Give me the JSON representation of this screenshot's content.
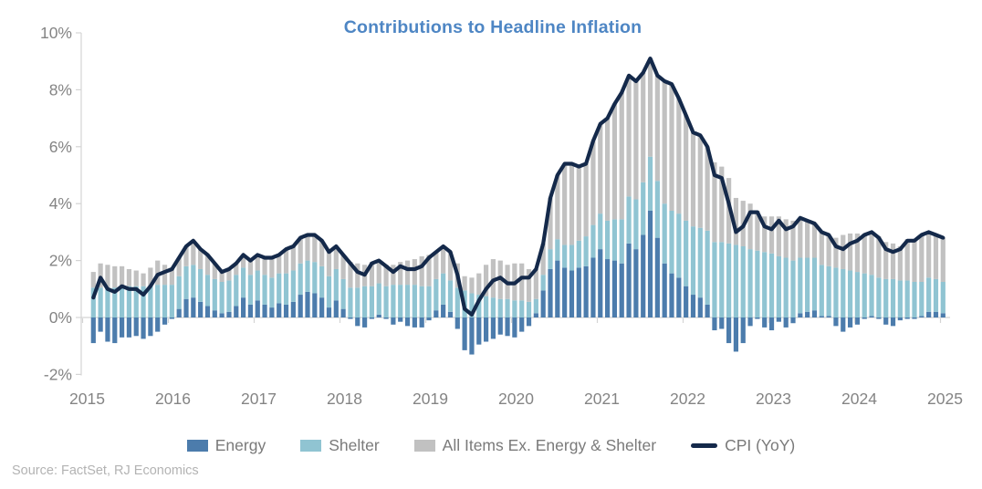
{
  "title": "Contributions to Headline Inflation",
  "source": "Source: FactSet, RJ Economics",
  "colors": {
    "energy": "#4C7CAC",
    "shelter": "#90C4D2",
    "core": "#C1C1C1",
    "cpi_line": "#14294A",
    "title_text": "#4E86C4",
    "axis_text": "#848484",
    "legend_text": "#7A7A7A",
    "source_text": "#B3B3B3",
    "axis_line": "#D4D4D4"
  },
  "legend": {
    "items": [
      {
        "key": "energy",
        "label": "Energy",
        "type": "swatch"
      },
      {
        "key": "shelter",
        "label": "Shelter",
        "type": "swatch"
      },
      {
        "key": "core",
        "label": "All Items Ex. Energy & Shelter",
        "type": "swatch"
      },
      {
        "key": "cpi",
        "label": "CPI (YoY)",
        "type": "line"
      }
    ]
  },
  "chart_data": {
    "type": "stacked_bar_with_line",
    "title": "Contributions to Headline Inflation",
    "unit": "%",
    "frequency": "monthly",
    "start_month": "2015-12",
    "n_points": 120,
    "ylim": [
      -2,
      10
    ],
    "grid": false,
    "legend_position": "bottom",
    "y_tick_values": [
      10,
      8,
      6,
      4,
      2,
      0,
      -2
    ],
    "y_tick_labels": [
      "10%",
      "8%",
      "6%",
      "4%",
      "2%",
      "0%",
      "-2%"
    ],
    "x_tick_labels": [
      "2015",
      "2016",
      "2017",
      "2018",
      "2019",
      "2020",
      "2021",
      "2022",
      "2023",
      "2024",
      "2025"
    ],
    "series": [
      {
        "name": "Energy",
        "key": "energy",
        "render": "bar",
        "color": "#4C7CAC",
        "values": [
          -0.9,
          -0.5,
          -0.85,
          -0.9,
          -0.7,
          -0.7,
          -0.65,
          -0.75,
          -0.65,
          -0.5,
          -0.25,
          -0.05,
          0.3,
          0.65,
          0.7,
          0.55,
          0.4,
          0.25,
          0.15,
          0.2,
          0.4,
          0.7,
          0.45,
          0.6,
          0.45,
          0.35,
          0.5,
          0.45,
          0.55,
          0.8,
          0.9,
          0.85,
          0.7,
          0.35,
          0.6,
          0.3,
          -0.05,
          -0.3,
          -0.35,
          -0.05,
          0.1,
          -0.05,
          -0.25,
          -0.15,
          -0.3,
          -0.35,
          -0.35,
          -0.1,
          0.25,
          0.45,
          0.2,
          -0.4,
          -1.15,
          -1.3,
          -0.95,
          -0.85,
          -0.75,
          -0.6,
          -0.65,
          -0.7,
          -0.5,
          -0.3,
          0.15,
          0.95,
          1.7,
          2.0,
          1.75,
          1.65,
          1.75,
          1.8,
          2.1,
          2.4,
          2.05,
          2.0,
          1.9,
          2.6,
          2.4,
          2.9,
          3.75,
          2.8,
          1.9,
          1.55,
          1.4,
          1.1,
          0.8,
          0.7,
          0.45,
          -0.45,
          -0.4,
          -0.9,
          -1.2,
          -0.9,
          -0.3,
          -0.05,
          -0.35,
          -0.45,
          -0.15,
          -0.35,
          -0.2,
          0.15,
          0.2,
          0.25,
          0.05,
          0.05,
          -0.3,
          -0.5,
          -0.35,
          -0.25,
          -0.05,
          0.05,
          -0.05,
          -0.25,
          -0.3,
          -0.1,
          -0.05,
          -0.05,
          0.05,
          0.2,
          0.2,
          0.15
        ]
      },
      {
        "name": "Shelter",
        "key": "shelter",
        "render": "bar",
        "color": "#90C4D2",
        "values": [
          1.05,
          1.05,
          1.05,
          1.05,
          1.05,
          1.1,
          1.1,
          1.1,
          1.1,
          1.15,
          1.15,
          1.15,
          1.15,
          1.15,
          1.15,
          1.15,
          1.1,
          1.1,
          1.1,
          1.1,
          1.1,
          1.05,
          1.05,
          1.05,
          1.05,
          1.05,
          1.05,
          1.1,
          1.1,
          1.1,
          1.1,
          1.1,
          1.1,
          1.1,
          1.1,
          1.05,
          1.05,
          1.05,
          1.1,
          1.1,
          1.1,
          1.1,
          1.15,
          1.15,
          1.15,
          1.15,
          1.1,
          1.1,
          1.1,
          1.1,
          1.1,
          1.05,
          0.95,
          0.85,
          0.8,
          0.75,
          0.7,
          0.65,
          0.65,
          0.6,
          0.6,
          0.55,
          0.5,
          0.55,
          0.7,
          0.75,
          0.8,
          0.9,
          0.95,
          1.05,
          1.15,
          1.25,
          1.35,
          1.45,
          1.55,
          1.65,
          1.75,
          1.85,
          1.9,
          2.0,
          2.1,
          2.2,
          2.25,
          2.3,
          2.4,
          2.45,
          2.6,
          2.65,
          2.65,
          2.6,
          2.55,
          2.5,
          2.4,
          2.35,
          2.3,
          2.25,
          2.15,
          2.1,
          2.0,
          1.95,
          1.9,
          1.85,
          1.8,
          1.75,
          1.75,
          1.7,
          1.65,
          1.6,
          1.55,
          1.45,
          1.4,
          1.35,
          1.35,
          1.3,
          1.3,
          1.25,
          1.2,
          1.2,
          1.15,
          1.1
        ]
      },
      {
        "name": "All Items Ex. Energy & Shelter",
        "key": "core",
        "render": "bar",
        "color": "#C1C1C1",
        "values": [
          0.55,
          0.85,
          0.8,
          0.75,
          0.75,
          0.6,
          0.55,
          0.45,
          0.65,
          0.85,
          0.7,
          0.6,
          0.65,
          0.7,
          0.85,
          0.7,
          0.7,
          0.55,
          0.35,
          0.4,
          0.4,
          0.45,
          0.5,
          0.55,
          0.6,
          0.7,
          0.65,
          0.85,
          0.85,
          0.9,
          0.9,
          0.95,
          0.9,
          0.85,
          0.8,
          0.85,
          0.9,
          0.85,
          0.75,
          0.85,
          0.8,
          0.75,
          0.7,
          0.8,
          0.85,
          0.9,
          1.05,
          1.1,
          0.95,
          0.95,
          1.0,
          0.85,
          0.5,
          0.55,
          0.75,
          1.1,
          1.35,
          1.35,
          1.2,
          1.3,
          1.3,
          1.15,
          1.05,
          1.1,
          1.8,
          2.25,
          2.85,
          2.85,
          2.6,
          2.55,
          2.95,
          3.15,
          3.6,
          4.05,
          4.45,
          4.25,
          4.15,
          3.85,
          3.45,
          3.7,
          4.3,
          4.45,
          4.05,
          3.7,
          3.3,
          3.25,
          2.95,
          2.8,
          2.65,
          2.3,
          1.65,
          1.6,
          1.6,
          1.4,
          1.25,
          1.3,
          1.4,
          1.35,
          1.4,
          1.4,
          1.3,
          1.2,
          1.15,
          1.1,
          1.05,
          1.2,
          1.3,
          1.35,
          1.4,
          1.5,
          1.45,
          1.3,
          1.25,
          1.2,
          1.45,
          1.5,
          1.65,
          1.6,
          1.55,
          1.55
        ]
      },
      {
        "name": "CPI (YoY)",
        "key": "cpi",
        "render": "line",
        "color": "#14294A",
        "values": [
          0.7,
          1.4,
          1.0,
          0.9,
          1.1,
          1.0,
          1.0,
          0.8,
          1.1,
          1.5,
          1.6,
          1.7,
          2.1,
          2.5,
          2.7,
          2.4,
          2.2,
          1.9,
          1.6,
          1.7,
          1.9,
          2.2,
          2.0,
          2.2,
          2.1,
          2.1,
          2.2,
          2.4,
          2.5,
          2.8,
          2.9,
          2.9,
          2.7,
          2.3,
          2.5,
          2.2,
          1.9,
          1.6,
          1.5,
          1.9,
          2.0,
          1.8,
          1.6,
          1.8,
          1.7,
          1.7,
          1.8,
          2.1,
          2.3,
          2.5,
          2.3,
          1.5,
          0.3,
          0.1,
          0.6,
          1.0,
          1.3,
          1.4,
          1.2,
          1.2,
          1.4,
          1.4,
          1.7,
          2.6,
          4.2,
          5.0,
          5.4,
          5.4,
          5.3,
          5.4,
          6.2,
          6.8,
          7.0,
          7.5,
          7.9,
          8.5,
          8.3,
          8.6,
          9.1,
          8.5,
          8.3,
          8.2,
          7.7,
          7.1,
          6.5,
          6.4,
          6.0,
          5.0,
          4.9,
          4.0,
          3.0,
          3.2,
          3.7,
          3.7,
          3.2,
          3.1,
          3.4,
          3.1,
          3.2,
          3.5,
          3.4,
          3.3,
          3.0,
          2.9,
          2.5,
          2.4,
          2.6,
          2.7,
          2.9,
          3.0,
          2.8,
          2.4,
          2.3,
          2.4,
          2.7,
          2.7,
          2.9,
          3.0,
          2.9,
          2.8
        ]
      }
    ]
  }
}
